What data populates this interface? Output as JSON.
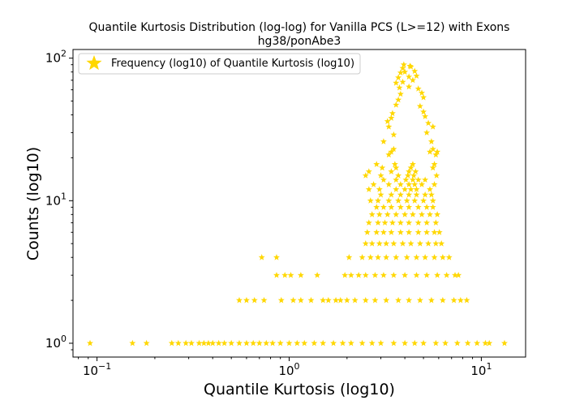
{
  "chart_data": {
    "type": "scatter",
    "title": "Quantile Kurtosis Distribution (log-log) for Vanilla PCS (L>=12) with Exons",
    "subtitle": "hg38/ponAbe3",
    "xlabel": "Quantile Kurtosis (log10)",
    "ylabel": "Counts (log10)",
    "xscale": "log",
    "yscale": "log",
    "xlim": [
      0.075,
      17
    ],
    "ylim": [
      0.8,
      115
    ],
    "x_ticks": [
      {
        "base": "10",
        "exp": "−1"
      },
      {
        "base": "10",
        "exp": "0"
      },
      {
        "base": "10",
        "exp": "1"
      }
    ],
    "y_ticks": [
      {
        "base": "10",
        "exp": "0"
      },
      {
        "base": "10",
        "exp": "1"
      },
      {
        "base": "10",
        "exp": "2"
      }
    ],
    "grid": false,
    "legend_position": "top-left",
    "marker": "star",
    "color": "#FFD700",
    "series": [
      {
        "name": "Frequency (log10) of Quantile Kurtosis (log10)",
        "points": [
          [
            0.092,
            1
          ],
          [
            0.153,
            1
          ],
          [
            0.181,
            1
          ],
          [
            0.245,
            1
          ],
          [
            0.265,
            1
          ],
          [
            0.29,
            1
          ],
          [
            0.31,
            1
          ],
          [
            0.34,
            1
          ],
          [
            0.36,
            1
          ],
          [
            0.38,
            1
          ],
          [
            0.4,
            1
          ],
          [
            0.43,
            1
          ],
          [
            0.46,
            1
          ],
          [
            0.5,
            1
          ],
          [
            0.55,
            1
          ],
          [
            0.6,
            1
          ],
          [
            0.65,
            1
          ],
          [
            0.7,
            1
          ],
          [
            0.76,
            1
          ],
          [
            0.82,
            1
          ],
          [
            0.9,
            1
          ],
          [
            1.0,
            1
          ],
          [
            1.1,
            1
          ],
          [
            1.2,
            1
          ],
          [
            1.35,
            1
          ],
          [
            1.5,
            1
          ],
          [
            1.7,
            1
          ],
          [
            1.9,
            1
          ],
          [
            2.1,
            1
          ],
          [
            2.4,
            1
          ],
          [
            2.7,
            1
          ],
          [
            3.0,
            1
          ],
          [
            3.5,
            1
          ],
          [
            4.0,
            1
          ],
          [
            4.5,
            1
          ],
          [
            5.0,
            1
          ],
          [
            5.8,
            1
          ],
          [
            6.5,
            1
          ],
          [
            7.5,
            1
          ],
          [
            8.5,
            1
          ],
          [
            9.5,
            1
          ],
          [
            10.5,
            1
          ],
          [
            11.0,
            1
          ],
          [
            13.2,
            1
          ],
          [
            0.55,
            2
          ],
          [
            0.6,
            2
          ],
          [
            0.66,
            2
          ],
          [
            0.74,
            2
          ],
          [
            0.91,
            2
          ],
          [
            1.05,
            2
          ],
          [
            1.15,
            2
          ],
          [
            1.3,
            2
          ],
          [
            1.5,
            2
          ],
          [
            1.6,
            2
          ],
          [
            1.75,
            2
          ],
          [
            1.85,
            2
          ],
          [
            2.0,
            2
          ],
          [
            2.2,
            2
          ],
          [
            2.5,
            2
          ],
          [
            2.8,
            2
          ],
          [
            3.2,
            2
          ],
          [
            3.7,
            2
          ],
          [
            4.2,
            2
          ],
          [
            4.8,
            2
          ],
          [
            5.5,
            2
          ],
          [
            6.3,
            2
          ],
          [
            7.2,
            2
          ],
          [
            7.8,
            2
          ],
          [
            8.4,
            2
          ],
          [
            0.86,
            3
          ],
          [
            0.95,
            3
          ],
          [
            1.02,
            3
          ],
          [
            1.15,
            3
          ],
          [
            1.4,
            3
          ],
          [
            1.95,
            3
          ],
          [
            2.1,
            3
          ],
          [
            2.3,
            3
          ],
          [
            2.5,
            3
          ],
          [
            2.8,
            3
          ],
          [
            3.1,
            3
          ],
          [
            3.5,
            3
          ],
          [
            4.0,
            3
          ],
          [
            4.6,
            3
          ],
          [
            5.2,
            3
          ],
          [
            5.9,
            3
          ],
          [
            6.6,
            3
          ],
          [
            7.3,
            3
          ],
          [
            7.6,
            3
          ],
          [
            0.72,
            4
          ],
          [
            0.86,
            4
          ],
          [
            2.05,
            4
          ],
          [
            2.4,
            4
          ],
          [
            2.65,
            4
          ],
          [
            2.9,
            4
          ],
          [
            3.2,
            4
          ],
          [
            3.6,
            4
          ],
          [
            4.1,
            4
          ],
          [
            4.6,
            4
          ],
          [
            5.1,
            4
          ],
          [
            5.7,
            4
          ],
          [
            6.3,
            4
          ],
          [
            6.8,
            4
          ],
          [
            2.5,
            5
          ],
          [
            2.7,
            5
          ],
          [
            2.95,
            5
          ],
          [
            3.2,
            5
          ],
          [
            3.5,
            5
          ],
          [
            3.9,
            5
          ],
          [
            4.3,
            5
          ],
          [
            4.8,
            5
          ],
          [
            5.3,
            5
          ],
          [
            5.8,
            5
          ],
          [
            6.2,
            5
          ],
          [
            2.55,
            6
          ],
          [
            2.85,
            6
          ],
          [
            3.1,
            6
          ],
          [
            3.4,
            6
          ],
          [
            3.8,
            6
          ],
          [
            4.2,
            6
          ],
          [
            4.7,
            6
          ],
          [
            5.2,
            6
          ],
          [
            5.7,
            6
          ],
          [
            6.05,
            6
          ],
          [
            2.6,
            7
          ],
          [
            2.9,
            7
          ],
          [
            3.15,
            7
          ],
          [
            3.45,
            7
          ],
          [
            3.8,
            7
          ],
          [
            4.2,
            7
          ],
          [
            4.7,
            7
          ],
          [
            5.2,
            7
          ],
          [
            5.8,
            7
          ],
          [
            2.7,
            8
          ],
          [
            2.95,
            8
          ],
          [
            3.25,
            8
          ],
          [
            3.6,
            8
          ],
          [
            4.0,
            8
          ],
          [
            4.4,
            8
          ],
          [
            4.9,
            8
          ],
          [
            5.4,
            8
          ],
          [
            5.9,
            8
          ],
          [
            2.85,
            9
          ],
          [
            3.1,
            9
          ],
          [
            3.4,
            9
          ],
          [
            3.8,
            9
          ],
          [
            4.2,
            9
          ],
          [
            4.7,
            9
          ],
          [
            5.2,
            9
          ],
          [
            5.6,
            9
          ],
          [
            2.65,
            10
          ],
          [
            2.9,
            10
          ],
          [
            3.3,
            10
          ],
          [
            3.7,
            10
          ],
          [
            4.1,
            10
          ],
          [
            4.5,
            10
          ],
          [
            5.0,
            10
          ],
          [
            5.6,
            10
          ],
          [
            3.0,
            11
          ],
          [
            3.4,
            11
          ],
          [
            3.8,
            11
          ],
          [
            4.2,
            11
          ],
          [
            4.6,
            11
          ],
          [
            5.1,
            11
          ],
          [
            5.5,
            11
          ],
          [
            2.6,
            12
          ],
          [
            2.95,
            12
          ],
          [
            3.6,
            12
          ],
          [
            4.0,
            12
          ],
          [
            4.3,
            12
          ],
          [
            4.6,
            12
          ],
          [
            5.4,
            12
          ],
          [
            2.75,
            13
          ],
          [
            3.3,
            13
          ],
          [
            3.8,
            13
          ],
          [
            4.2,
            13
          ],
          [
            4.5,
            13
          ],
          [
            4.9,
            13
          ],
          [
            5.7,
            13
          ],
          [
            3.1,
            14
          ],
          [
            3.6,
            14
          ],
          [
            4.05,
            14
          ],
          [
            4.4,
            14
          ],
          [
            4.7,
            14
          ],
          [
            5.1,
            14
          ],
          [
            2.5,
            15
          ],
          [
            3.0,
            15
          ],
          [
            3.7,
            15
          ],
          [
            4.15,
            15
          ],
          [
            4.45,
            15
          ],
          [
            5.85,
            15
          ],
          [
            2.6,
            16
          ],
          [
            3.4,
            16
          ],
          [
            4.2,
            16
          ],
          [
            4.55,
            16
          ],
          [
            3.05,
            17
          ],
          [
            3.6,
            17
          ],
          [
            4.3,
            17
          ],
          [
            5.6,
            17
          ],
          [
            2.85,
            18
          ],
          [
            3.55,
            18
          ],
          [
            4.4,
            18
          ],
          [
            5.7,
            18
          ],
          [
            3.3,
            21
          ],
          [
            5.8,
            21
          ],
          [
            3.4,
            22
          ],
          [
            5.4,
            22
          ],
          [
            5.9,
            22
          ],
          [
            3.5,
            23
          ],
          [
            5.6,
            23
          ],
          [
            3.1,
            26
          ],
          [
            5.5,
            26
          ],
          [
            3.5,
            29
          ],
          [
            5.2,
            30
          ],
          [
            3.3,
            33
          ],
          [
            5.6,
            33
          ],
          [
            3.25,
            36
          ],
          [
            5.3,
            35
          ],
          [
            3.4,
            38
          ],
          [
            5.1,
            39
          ],
          [
            3.45,
            41
          ],
          [
            5.0,
            42
          ],
          [
            3.6,
            47
          ],
          [
            4.8,
            46
          ],
          [
            3.7,
            51
          ],
          [
            5.0,
            53
          ],
          [
            3.8,
            56
          ],
          [
            4.9,
            57
          ],
          [
            3.75,
            62
          ],
          [
            4.2,
            63
          ],
          [
            4.7,
            61
          ],
          [
            3.6,
            67
          ],
          [
            3.9,
            68
          ],
          [
            4.4,
            70
          ],
          [
            3.7,
            73
          ],
          [
            4.2,
            74
          ],
          [
            4.6,
            75
          ],
          [
            3.8,
            79
          ],
          [
            4.0,
            80
          ],
          [
            4.5,
            81
          ],
          [
            3.9,
            85
          ],
          [
            4.3,
            87
          ],
          [
            3.95,
            90
          ],
          [
            4.25,
            88
          ]
        ]
      }
    ]
  }
}
